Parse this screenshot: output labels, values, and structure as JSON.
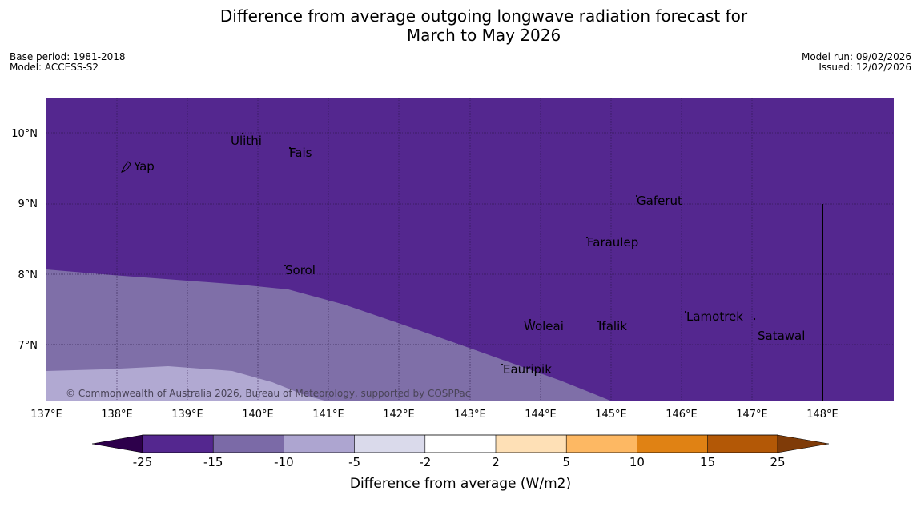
{
  "title_line1": "Difference from average outgoing longwave radiation forecast for",
  "title_line2": "March to May 2026",
  "base_period": "Base period: 1981-2018",
  "model": "Model: ACCESS-S2",
  "model_run": "Model run: 09/02/2026",
  "issued": "Issued: 12/02/2026",
  "copyright": "© Commonwealth of Australia 2026, Bureau of Meteorology, supported by COSPPac",
  "lon_labels": [
    "137°E",
    "138°E",
    "139°E",
    "140°E",
    "141°E",
    "142°E",
    "143°E",
    "144°E",
    "145°E",
    "146°E",
    "147°E",
    "148°E"
  ],
  "lat_labels": [
    "10°N",
    "9°N",
    "8°N",
    "7°N"
  ],
  "places": [
    "Yap",
    "Ulithi",
    "Fais",
    "Gaferut",
    "Faraulep",
    "Sorol",
    "Woleai",
    "Ifalik",
    "Lamotrek",
    "Satawal",
    "Eauripik"
  ],
  "colorbar": {
    "ticks": [
      "-25",
      "-15",
      "-10",
      "-5",
      "-2",
      "2",
      "5",
      "10",
      "15",
      "25"
    ],
    "label": "Difference from average (W/m2)",
    "colors": [
      "#54278f",
      "#7b6aa7",
      "#ada5d0",
      "#dadaeb",
      "#ffffff",
      "#fee0b6",
      "#fdb863",
      "#e08214",
      "#b35806"
    ],
    "under_color": "#2d004b",
    "over_color": "#7f3b08"
  },
  "region_colors": {
    "dark": "#54278f",
    "mid": "#7f6fa8",
    "light": "#b1a9d2"
  }
}
